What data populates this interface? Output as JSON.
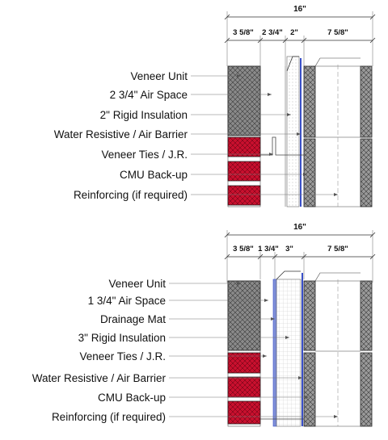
{
  "detail_1": {
    "total_dimension": "16\"",
    "dimensions": [
      "3 5/8\"",
      "2 3/4\"",
      "2\"",
      "7 5/8\""
    ],
    "labels": [
      "Veneer Unit",
      "2 3/4\" Air Space",
      "2\" Rigid Insulation",
      "Water Resistive / Air Barrier",
      "Veneer Ties / J.R.",
      "CMU Back-up",
      "Reinforcing (if required)"
    ]
  },
  "detail_2": {
    "total_dimension": "16\"",
    "dimensions": [
      "3 5/8\"",
      "1 3/4\"",
      "3\"",
      "7 5/8\""
    ],
    "labels": [
      "Veneer Unit",
      "1 3/4\" Air Space",
      "Drainage Mat",
      "3\" Rigid Insulation",
      "Veneer Ties / J.R.",
      "Water Resistive / Air Barrier",
      "CMU Back-up",
      "Reinforcing (if required)"
    ]
  },
  "colors": {
    "brick_red": "#c8102e",
    "veneer_gray": "#8a8a8a",
    "cmu_gray": "#9a9a9a",
    "air_barrier_blue": "#3a50c8",
    "drainage_mat_blue": "#7f8fd8",
    "line": "#555555"
  }
}
